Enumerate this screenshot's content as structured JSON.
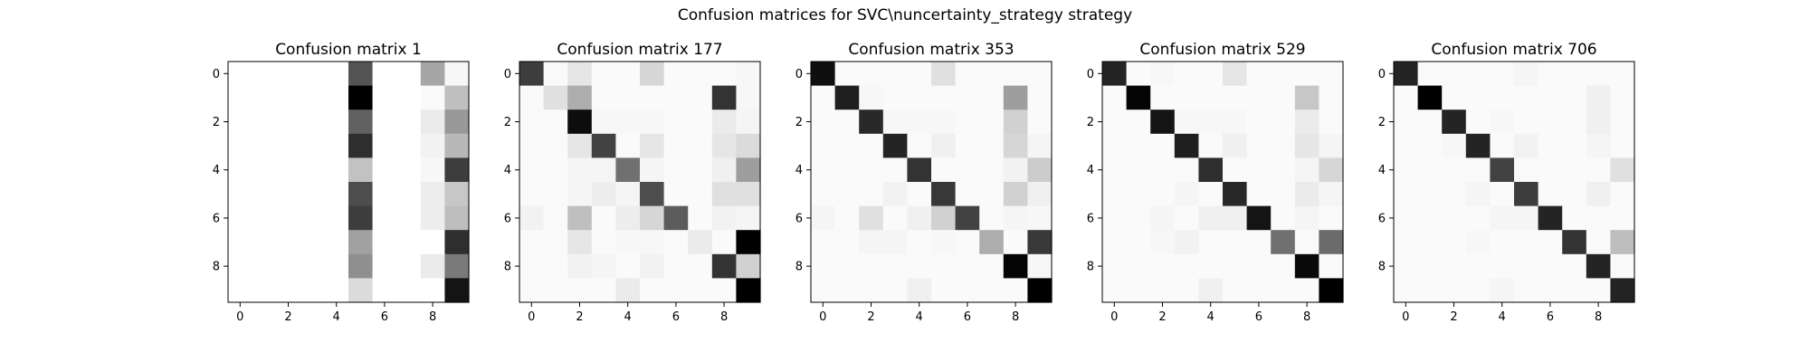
{
  "figure": {
    "title": "Confusion matrices for SVC\\nuncertainty_strategy strategy"
  },
  "chart_data": [
    {
      "type": "heatmap",
      "title": "Confusion matrix 1",
      "colormap": "Greys",
      "xticks": [
        "0",
        "2",
        "4",
        "6",
        "8"
      ],
      "yticks": [
        "0",
        "2",
        "4",
        "6",
        "8"
      ],
      "matrix": [
        [
          0,
          0,
          0,
          0,
          0,
          0.67,
          0,
          0,
          0.35,
          0.03
        ],
        [
          0,
          0,
          0,
          0,
          0,
          1.0,
          0,
          0,
          0.02,
          0.25
        ],
        [
          0,
          0,
          0,
          0,
          0,
          0.62,
          0,
          0,
          0.08,
          0.4
        ],
        [
          0,
          0,
          0,
          0,
          0,
          0.82,
          0,
          0,
          0.05,
          0.28
        ],
        [
          0,
          0,
          0,
          0,
          0,
          0.24,
          0,
          0,
          0.03,
          0.76
        ],
        [
          0,
          0,
          0,
          0,
          0,
          0.7,
          0,
          0,
          0.07,
          0.22
        ],
        [
          0,
          0,
          0,
          0,
          0,
          0.76,
          0,
          0,
          0.07,
          0.26
        ],
        [
          0,
          0,
          0,
          0,
          0,
          0.37,
          0,
          0,
          0,
          0.82
        ],
        [
          0,
          0,
          0,
          0,
          0,
          0.44,
          0,
          0,
          0.08,
          0.52
        ],
        [
          0,
          0,
          0,
          0,
          0,
          0.14,
          0,
          0,
          0,
          0.92
        ]
      ]
    },
    {
      "type": "heatmap",
      "title": "Confusion matrix 177",
      "colormap": "Greys",
      "xticks": [
        "0",
        "2",
        "4",
        "6",
        "8"
      ],
      "yticks": [
        "0",
        "2",
        "4",
        "6",
        "8"
      ],
      "matrix": [
        [
          0.76,
          0.02,
          0.1,
          0.02,
          0.02,
          0.16,
          0.02,
          0.02,
          0.02,
          0.03
        ],
        [
          0.02,
          0.12,
          0.32,
          0.02,
          0.02,
          0.02,
          0.02,
          0.02,
          0.8,
          0.03
        ],
        [
          0.02,
          0.02,
          0.95,
          0.03,
          0.03,
          0.03,
          0.02,
          0.02,
          0.08,
          0.04
        ],
        [
          0.02,
          0.02,
          0.1,
          0.74,
          0.02,
          0.1,
          0.02,
          0.02,
          0.1,
          0.14
        ],
        [
          0.02,
          0.02,
          0.04,
          0.04,
          0.56,
          0.04,
          0.02,
          0.02,
          0.06,
          0.38
        ],
        [
          0.02,
          0.02,
          0.04,
          0.07,
          0.04,
          0.7,
          0.02,
          0.02,
          0.12,
          0.12
        ],
        [
          0.05,
          0.02,
          0.25,
          0.02,
          0.07,
          0.16,
          0.64,
          0.02,
          0.05,
          0.04
        ],
        [
          0.02,
          0.02,
          0.1,
          0.02,
          0.03,
          0.03,
          0.02,
          0.08,
          0.02,
          1.0
        ],
        [
          0.02,
          0.02,
          0.05,
          0.04,
          0.02,
          0.05,
          0.02,
          0.02,
          0.8,
          0.18
        ],
        [
          0.02,
          0.02,
          0.02,
          0.02,
          0.08,
          0.02,
          0.02,
          0.02,
          0.02,
          1.0
        ]
      ]
    },
    {
      "type": "heatmap",
      "title": "Confusion matrix 353",
      "colormap": "Greys",
      "xticks": [
        "0",
        "2",
        "4",
        "6",
        "8"
      ],
      "yticks": [
        "0",
        "2",
        "4",
        "6",
        "8"
      ],
      "matrix": [
        [
          0.94,
          0.02,
          0.02,
          0.02,
          0.02,
          0.12,
          0.02,
          0.02,
          0.02,
          0.02
        ],
        [
          0.02,
          0.88,
          0.03,
          0.02,
          0.02,
          0.02,
          0.02,
          0.02,
          0.38,
          0.02
        ],
        [
          0.02,
          0.02,
          0.84,
          0.03,
          0.03,
          0.03,
          0.02,
          0.02,
          0.18,
          0.02
        ],
        [
          0.02,
          0.02,
          0.02,
          0.86,
          0.02,
          0.06,
          0.02,
          0.02,
          0.16,
          0.04
        ],
        [
          0.02,
          0.02,
          0.02,
          0.02,
          0.8,
          0.02,
          0.02,
          0.02,
          0.05,
          0.2
        ],
        [
          0.02,
          0.02,
          0.02,
          0.05,
          0.02,
          0.78,
          0.02,
          0.02,
          0.18,
          0.06
        ],
        [
          0.04,
          0.02,
          0.12,
          0.02,
          0.06,
          0.18,
          0.74,
          0.02,
          0.04,
          0.03
        ],
        [
          0.02,
          0.02,
          0.04,
          0.04,
          0.02,
          0.03,
          0.02,
          0.32,
          0.02,
          0.78
        ],
        [
          0.02,
          0.02,
          0.02,
          0.02,
          0.02,
          0.02,
          0.02,
          0.02,
          0.98,
          0.03
        ],
        [
          0.02,
          0.02,
          0.02,
          0.02,
          0.06,
          0.02,
          0.02,
          0.02,
          0.02,
          1.0
        ]
      ]
    },
    {
      "type": "heatmap",
      "title": "Confusion matrix 529",
      "colormap": "Greys",
      "xticks": [
        "0",
        "2",
        "4",
        "6",
        "8"
      ],
      "yticks": [
        "0",
        "2",
        "4",
        "6",
        "8"
      ],
      "matrix": [
        [
          0.86,
          0.02,
          0.03,
          0.02,
          0.02,
          0.1,
          0.02,
          0.02,
          0.02,
          0.02
        ],
        [
          0.02,
          0.98,
          0.02,
          0.02,
          0.02,
          0.02,
          0.02,
          0.02,
          0.22,
          0.02
        ],
        [
          0.02,
          0.02,
          0.92,
          0.03,
          0.03,
          0.03,
          0.02,
          0.02,
          0.08,
          0.02
        ],
        [
          0.02,
          0.02,
          0.02,
          0.88,
          0.02,
          0.06,
          0.02,
          0.02,
          0.1,
          0.04
        ],
        [
          0.02,
          0.02,
          0.02,
          0.02,
          0.82,
          0.02,
          0.02,
          0.02,
          0.04,
          0.16
        ],
        [
          0.02,
          0.02,
          0.02,
          0.04,
          0.02,
          0.84,
          0.02,
          0.02,
          0.08,
          0.04
        ],
        [
          0.02,
          0.02,
          0.04,
          0.02,
          0.06,
          0.06,
          0.92,
          0.02,
          0.04,
          0.02
        ],
        [
          0.02,
          0.02,
          0.03,
          0.05,
          0.02,
          0.02,
          0.02,
          0.56,
          0.02,
          0.58
        ],
        [
          0.02,
          0.02,
          0.02,
          0.02,
          0.02,
          0.02,
          0.02,
          0.02,
          0.96,
          0.02
        ],
        [
          0.02,
          0.02,
          0.02,
          0.02,
          0.06,
          0.02,
          0.02,
          0.02,
          0.02,
          1.0
        ]
      ]
    },
    {
      "type": "heatmap",
      "title": "Confusion matrix 706",
      "colormap": "Greys",
      "xticks": [
        "0",
        "2",
        "4",
        "6",
        "8"
      ],
      "yticks": [
        "0",
        "2",
        "4",
        "6",
        "8"
      ],
      "matrix": [
        [
          0.86,
          0.02,
          0.02,
          0.02,
          0.02,
          0.04,
          0.02,
          0.02,
          0.02,
          0.02
        ],
        [
          0.02,
          1.0,
          0.02,
          0.02,
          0.02,
          0.02,
          0.02,
          0.02,
          0.06,
          0.02
        ],
        [
          0.02,
          0.02,
          0.86,
          0.02,
          0.03,
          0.02,
          0.02,
          0.02,
          0.06,
          0.02
        ],
        [
          0.02,
          0.02,
          0.03,
          0.86,
          0.02,
          0.05,
          0.02,
          0.02,
          0.04,
          0.02
        ],
        [
          0.02,
          0.02,
          0.02,
          0.02,
          0.74,
          0.02,
          0.02,
          0.02,
          0.02,
          0.12
        ],
        [
          0.02,
          0.02,
          0.02,
          0.04,
          0.02,
          0.76,
          0.02,
          0.02,
          0.06,
          0.02
        ],
        [
          0.02,
          0.02,
          0.02,
          0.02,
          0.04,
          0.04,
          0.86,
          0.02,
          0.02,
          0.02
        ],
        [
          0.02,
          0.02,
          0.02,
          0.03,
          0.02,
          0.02,
          0.02,
          0.8,
          0.02,
          0.26
        ],
        [
          0.02,
          0.02,
          0.02,
          0.02,
          0.02,
          0.02,
          0.02,
          0.02,
          0.86,
          0.02
        ],
        [
          0.02,
          0.02,
          0.02,
          0.02,
          0.04,
          0.02,
          0.02,
          0.02,
          0.02,
          0.86
        ]
      ]
    }
  ]
}
